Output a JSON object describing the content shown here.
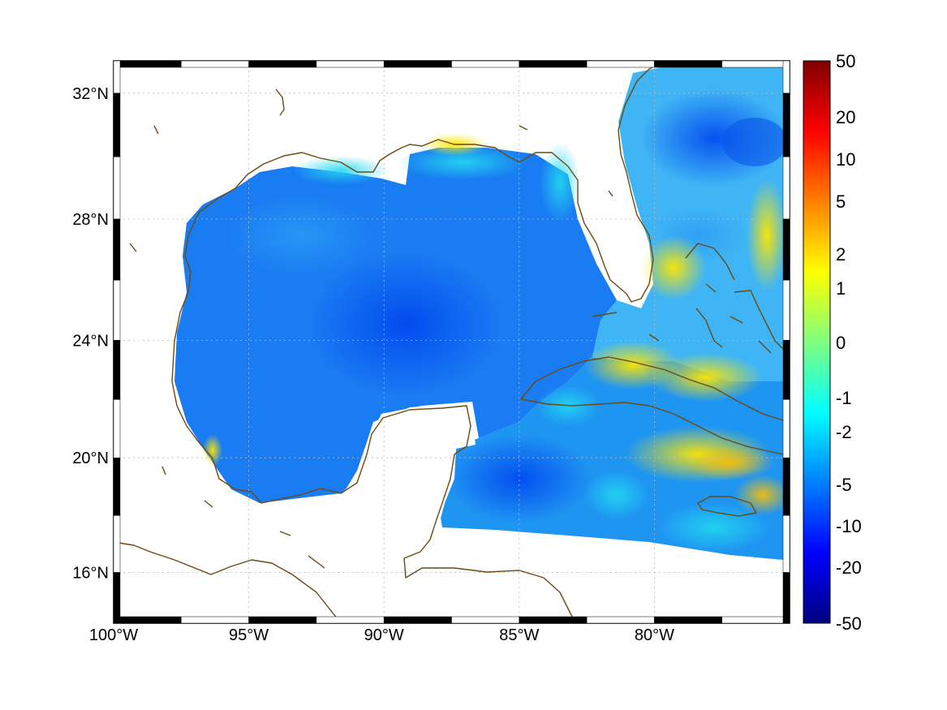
{
  "map": {
    "projection": "mercator",
    "lon_range": [
      -100,
      -75
    ],
    "lat_range": [
      14.2,
      33
    ],
    "grid": true,
    "lon_ticks": [
      {
        "value": -100,
        "label": "100°W"
      },
      {
        "value": -95,
        "label": "95°W"
      },
      {
        "value": -90,
        "label": "90°W"
      },
      {
        "value": -85,
        "label": "85°W"
      },
      {
        "value": -80,
        "label": "80°W"
      }
    ],
    "lat_ticks": [
      {
        "value": 32,
        "label": "32°N"
      },
      {
        "value": 28,
        "label": "28°N"
      },
      {
        "value": 24,
        "label": "24°N"
      },
      {
        "value": 20,
        "label": "20°N"
      },
      {
        "value": 16,
        "label": "16°N"
      }
    ],
    "coastline_color": "#6b4a10",
    "frame_colors": [
      "#000000",
      "#ffffff"
    ]
  },
  "colorbar": {
    "colormap": "jet",
    "range": [
      -50,
      50
    ],
    "labels": [
      "50",
      "20",
      "10",
      "5",
      "2",
      "1",
      "0",
      "-1",
      "-2",
      "-5",
      "-10",
      "-20",
      "-50"
    ]
  }
}
